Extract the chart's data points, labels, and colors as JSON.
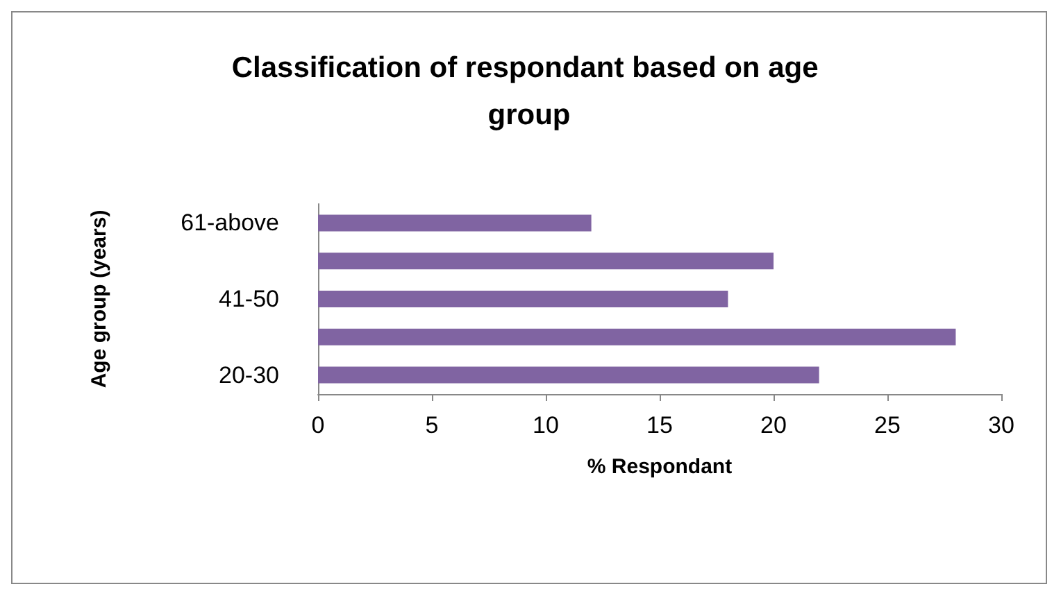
{
  "chart_data": {
    "type": "bar",
    "orientation": "horizontal",
    "title": "Classification of respondant based on age group",
    "xlabel": "% Respondant",
    "ylabel": "Age group (years)",
    "categories": [
      "61-above",
      null,
      "41-50",
      null,
      "20-30"
    ],
    "values": [
      12,
      20,
      18,
      28,
      22
    ],
    "color": "#8064a2",
    "xlim": [
      0,
      30
    ],
    "xticks": [
      0,
      5,
      10,
      15,
      20,
      25,
      30
    ],
    "grid": false
  }
}
